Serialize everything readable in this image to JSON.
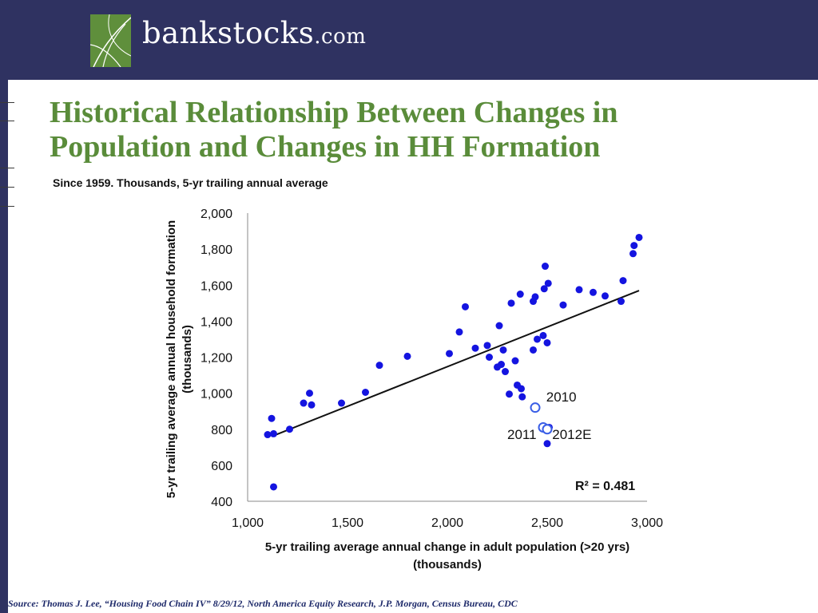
{
  "header": {
    "logo_name": "bankstocks",
    "logo_suffix": ".com"
  },
  "title_line1": "Historical Relationship Between Changes in",
  "title_line2": "Population and Changes in HH Formation",
  "subtitle": "Since 1959. Thousands, 5-yr trailing annual average",
  "source": "Source: Thomas J. Lee, “Housing Food Chain IV” 8/29/12, North America Equity Research, J.P. Morgan, Census Bureau, CDC",
  "colors": {
    "brand_green": "#5a8c3a",
    "header_navy": "#2f3261",
    "point_blue": "#1414e0",
    "hollow_point": "#3a5ee6"
  },
  "chart_data": {
    "type": "scatter",
    "xlim": [
      1000,
      3000
    ],
    "ylim": [
      400,
      2000
    ],
    "x_ticks": [
      "1,000",
      "1,500",
      "2,000",
      "2,500",
      "3,000"
    ],
    "y_ticks": [
      "400",
      "600",
      "800",
      "1,000",
      "1,200",
      "1,400",
      "1,600",
      "1,800",
      "2,000"
    ],
    "xlabel_line1": "5-yr trailing average annual change in adult population (>20 yrs)",
    "xlabel_line2": "(thousands)",
    "ylabel_line1": "5-yr trailing average annual household formation",
    "ylabel_line2": "(thousands)",
    "r_squared": "R² = 0.481",
    "trendline": {
      "x": [
        1120,
        2960
      ],
      "y": [
        760,
        1570
      ]
    },
    "points": [
      [
        1100,
        770
      ],
      [
        1120,
        860
      ],
      [
        1130,
        775
      ],
      [
        1130,
        480
      ],
      [
        1210,
        800
      ],
      [
        1280,
        945
      ],
      [
        1310,
        1000
      ],
      [
        1320,
        935
      ],
      [
        1470,
        945
      ],
      [
        1590,
        1005
      ],
      [
        1660,
        1155
      ],
      [
        1800,
        1205
      ],
      [
        2010,
        1220
      ],
      [
        2060,
        1340
      ],
      [
        2090,
        1480
      ],
      [
        2140,
        1250
      ],
      [
        2200,
        1265
      ],
      [
        2210,
        1200
      ],
      [
        2250,
        1145
      ],
      [
        2260,
        1375
      ],
      [
        2270,
        1160
      ],
      [
        2280,
        1240
      ],
      [
        2290,
        1120
      ],
      [
        2310,
        995
      ],
      [
        2320,
        1500
      ],
      [
        2340,
        1180
      ],
      [
        2350,
        1045
      ],
      [
        2365,
        1550
      ],
      [
        2370,
        1025
      ],
      [
        2375,
        980
      ],
      [
        2430,
        1240
      ],
      [
        2430,
        1510
      ],
      [
        2440,
        1535
      ],
      [
        2450,
        1300
      ],
      [
        2480,
        1320
      ],
      [
        2485,
        1580
      ],
      [
        2490,
        1705
      ],
      [
        2500,
        1280
      ],
      [
        2505,
        1610
      ],
      [
        2510,
        810
      ],
      [
        2500,
        720
      ],
      [
        2580,
        1490
      ],
      [
        2660,
        1575
      ],
      [
        2730,
        1560
      ],
      [
        2790,
        1540
      ],
      [
        2870,
        1510
      ],
      [
        2880,
        1625
      ],
      [
        2930,
        1775
      ],
      [
        2935,
        1820
      ],
      [
        2960,
        1865
      ]
    ],
    "annotations": [
      {
        "label": "2010",
        "x": 2440,
        "y": 920,
        "tx": 2495,
        "ty": 955
      },
      {
        "label": "2011",
        "x": 2480,
        "y": 810,
        "tx": 2300,
        "ty": 745
      },
      {
        "label": "2012E",
        "x": 2500,
        "y": 800,
        "tx": 2525,
        "ty": 745
      }
    ]
  }
}
